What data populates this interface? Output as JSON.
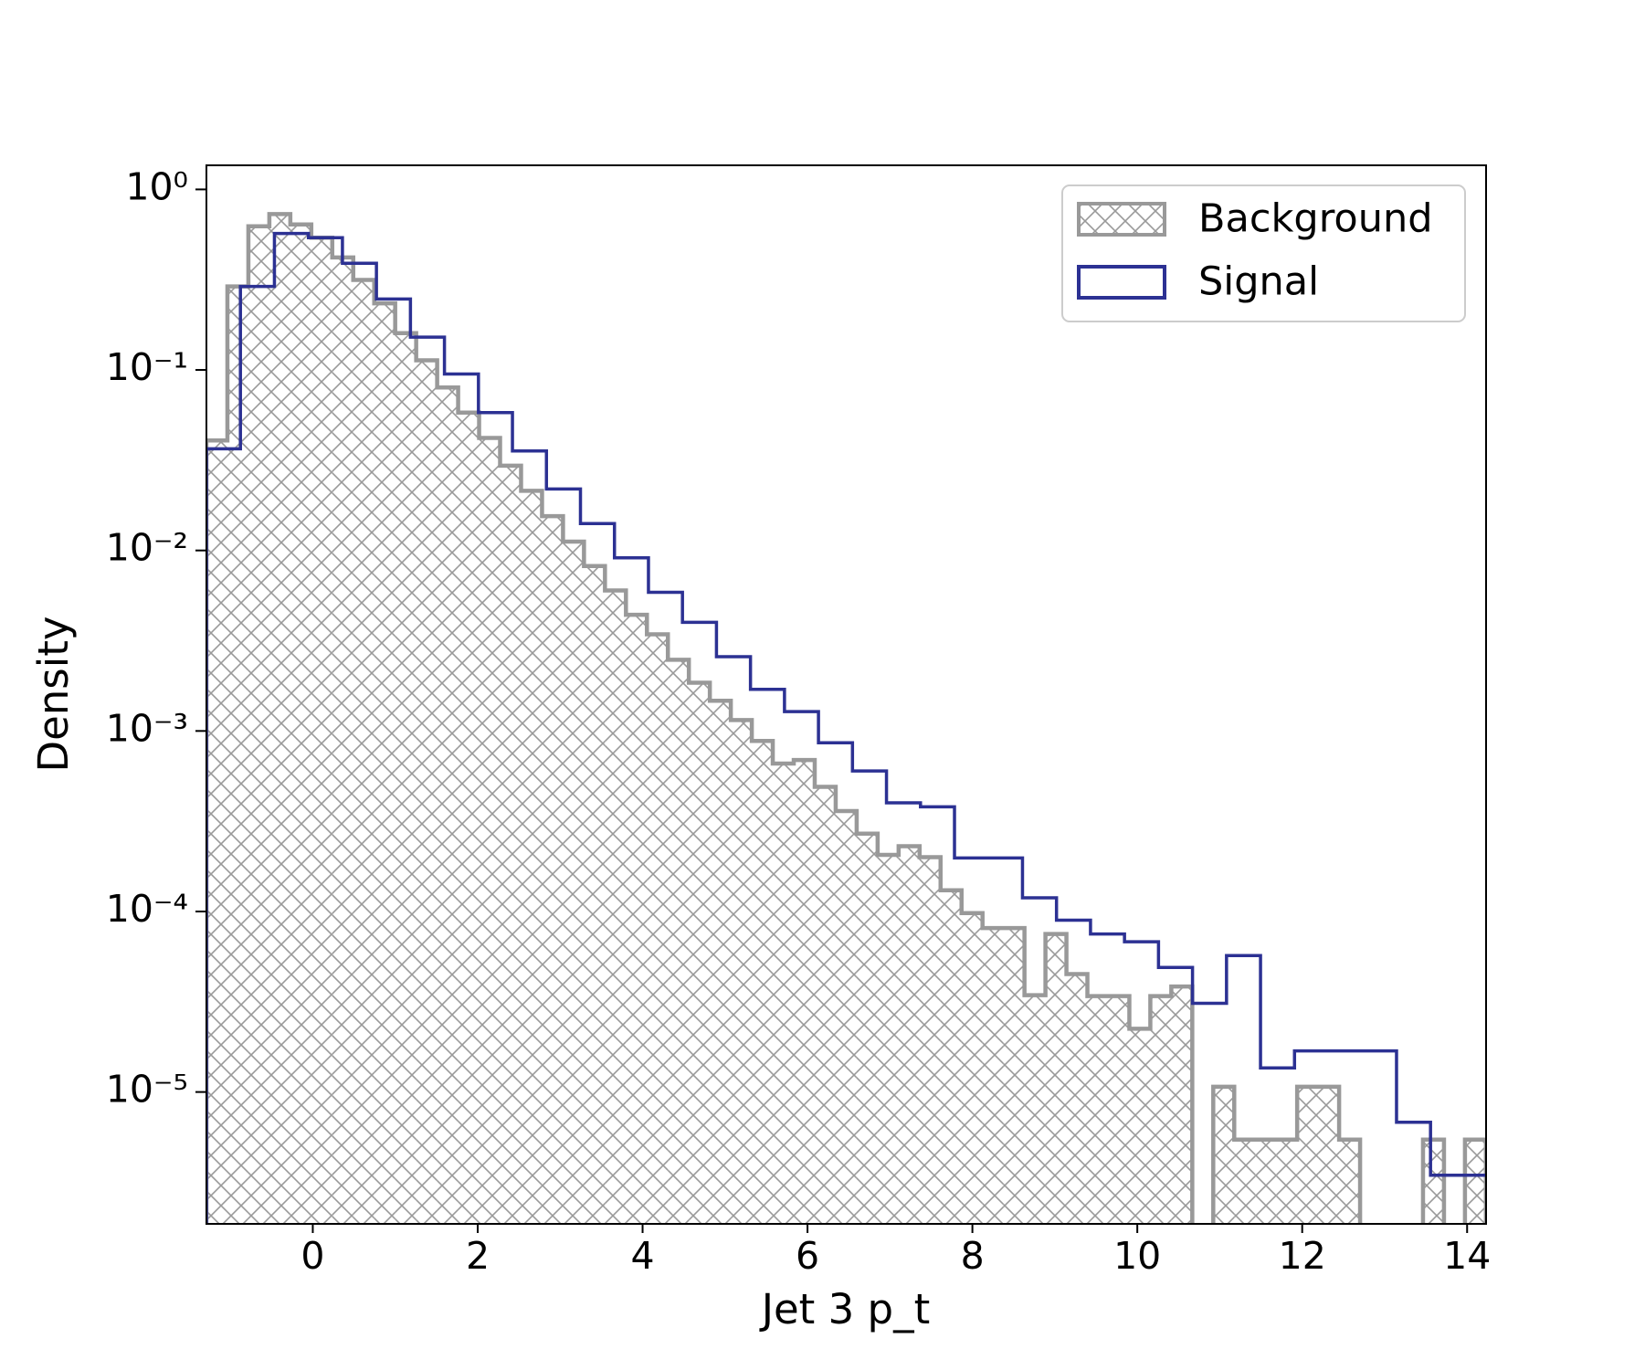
{
  "chart_data": {
    "type": "histogram",
    "x_label": "Jet 3 p_t",
    "y_label": "Density",
    "log_y": true,
    "legend": "upper right",
    "xlim": [
      -1.29,
      14.23
    ],
    "ylim": [
      1.86e-06,
      1.36
    ],
    "xticks": [
      0,
      2,
      4,
      6,
      8,
      10,
      12,
      14
    ],
    "yticks": [
      {
        "value": 1,
        "label": "10⁰"
      },
      {
        "value": 0.1,
        "label": "10⁻¹"
      },
      {
        "value": 0.01,
        "label": "10⁻²"
      },
      {
        "value": 0.001,
        "label": "10⁻³"
      },
      {
        "value": 0.0001,
        "label": "10⁻⁴"
      },
      {
        "value": 1e-05,
        "label": "10⁻⁵"
      }
    ],
    "series": [
      {
        "name": "Background",
        "color": "#999999",
        "style": "hatched",
        "bins": [
          -1.29,
          -1.0356,
          -0.7812,
          -0.5268,
          -0.2724,
          -0.018,
          0.2364,
          0.4908,
          0.7452,
          0.9996,
          1.254,
          1.5084,
          1.7628,
          2.0172,
          2.2716,
          2.526,
          2.7804,
          3.0348,
          3.2892,
          3.5436,
          3.798,
          4.0524,
          4.3068,
          4.5612,
          4.8156,
          5.07,
          5.3244,
          5.5788,
          5.8332,
          6.0876,
          6.342,
          6.5964,
          6.8508,
          7.1052,
          7.3596,
          7.614,
          7.8684,
          8.1228,
          8.3772,
          8.6316,
          8.886,
          9.1404,
          9.3948,
          9.6492,
          9.9036,
          10.158,
          10.4124,
          10.6668,
          10.9212,
          11.1756,
          11.43,
          11.6844,
          11.9388,
          12.1932,
          12.4476,
          12.702,
          12.9564,
          13.2108,
          13.4652,
          13.7196,
          13.974,
          14.2284
        ],
        "values": [
          0.0407,
          0.29,
          0.625,
          0.73,
          0.64,
          0.54,
          0.42,
          0.315,
          0.234,
          0.16,
          0.113,
          0.08,
          0.058,
          0.042,
          0.0295,
          0.0214,
          0.0155,
          0.0112,
          0.0082,
          0.006,
          0.0044,
          0.00343,
          0.00248,
          0.00185,
          0.00147,
          0.00115,
          0.00088,
          0.00066,
          0.00069,
          0.00049,
          0.00036,
          0.00027,
          0.000206,
          0.00023,
          0.0002,
          0.000131,
          9.8e-05,
          8.1e-05,
          8.1e-05,
          3.44e-05,
          7.5e-05,
          4.5e-05,
          3.4e-05,
          3.4e-05,
          2.24e-05,
          3.4e-05,
          3.84e-05,
          0,
          1.07e-05,
          5.45e-06,
          5.45e-06,
          5.45e-06,
          1.07e-05,
          1.07e-05,
          5.45e-06,
          0,
          0,
          0,
          5.45e-06,
          0,
          5.45e-06
        ]
      },
      {
        "name": "Signal",
        "color": "#2c3193",
        "style": "step",
        "bins": [
          -1.29,
          -0.8776,
          -0.4652,
          -0.0528,
          0.3596,
          0.772,
          1.1844,
          1.5968,
          2.0092,
          2.4216,
          2.834,
          3.2464,
          3.6588,
          4.0712,
          4.4836,
          4.896,
          5.3084,
          5.7208,
          6.1332,
          6.5456,
          6.958,
          7.3704,
          7.7828,
          8.1952,
          8.6076,
          9.02,
          9.4324,
          9.8448,
          10.2572,
          10.6696,
          11.082,
          11.4944,
          11.9068,
          12.3192,
          12.7316,
          13.144,
          13.5564,
          13.9688,
          14.3812
        ],
        "values": [
          0.0366,
          0.29,
          0.57,
          0.54,
          0.39,
          0.247,
          0.152,
          0.095,
          0.058,
          0.0356,
          0.0219,
          0.0141,
          0.0091,
          0.00586,
          0.004,
          0.00258,
          0.0017,
          0.00128,
          0.00086,
          0.0006,
          0.0004,
          0.00038,
          0.000198,
          0.000198,
          0.000119,
          8.95e-05,
          7.5e-05,
          6.8e-05,
          4.9e-05,
          3.1e-05,
          5.7e-05,
          1.36e-05,
          1.69e-05,
          1.69e-05,
          1.69e-05,
          6.8e-06,
          3.46e-06,
          3.46e-06
        ]
      }
    ]
  }
}
